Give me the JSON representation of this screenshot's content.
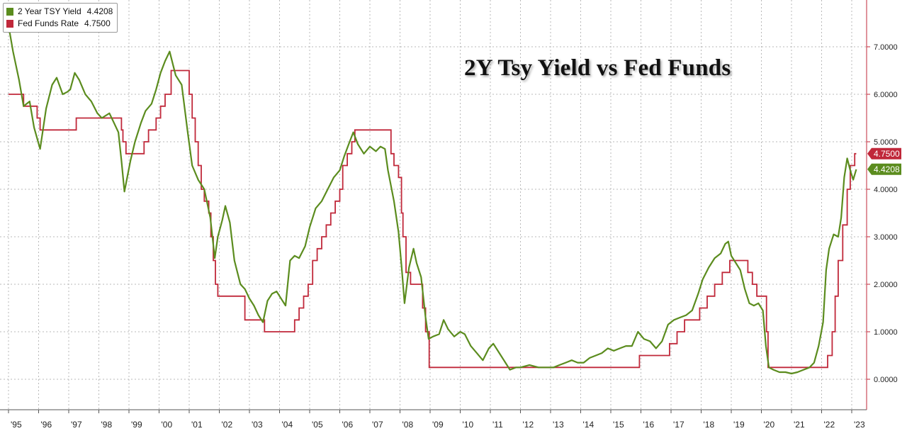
{
  "chart_data": {
    "type": "line",
    "title": "2Y Tsy Yield vs Fed Funds",
    "x_tick_labels": [
      "'95",
      "'96",
      "'97",
      "'98",
      "'99",
      "'00",
      "'01",
      "'02",
      "'03",
      "'04",
      "'05",
      "'06",
      "'07",
      "'08",
      "'09",
      "'10",
      "'11",
      "'12",
      "'13",
      "'14",
      "'15",
      "'16",
      "'17",
      "'18",
      "'19",
      "'20",
      "'21",
      "'22",
      "'23"
    ],
    "y_tick_labels": [
      "0.0000",
      "1.0000",
      "2.0000",
      "3.0000",
      "4.0000",
      "5.0000",
      "6.0000",
      "7.0000"
    ],
    "xlim": [
      1995.0,
      2023.2
    ],
    "ylim": [
      -0.6,
      8.0
    ],
    "grid": true,
    "legend_position": "top-left",
    "series": [
      {
        "name": "2 Year TSY Yield",
        "last_value": "4.4208",
        "color": "#5b8c1e",
        "points": [
          [
            1995.0,
            7.45
          ],
          [
            1995.15,
            6.9
          ],
          [
            1995.35,
            6.3
          ],
          [
            1995.5,
            5.75
          ],
          [
            1995.7,
            5.85
          ],
          [
            1995.85,
            5.3
          ],
          [
            1996.05,
            4.85
          ],
          [
            1996.25,
            5.7
          ],
          [
            1996.45,
            6.2
          ],
          [
            1996.6,
            6.35
          ],
          [
            1996.8,
            6.0
          ],
          [
            1996.95,
            6.05
          ],
          [
            1997.05,
            6.1
          ],
          [
            1997.2,
            6.45
          ],
          [
            1997.35,
            6.3
          ],
          [
            1997.55,
            6.0
          ],
          [
            1997.75,
            5.85
          ],
          [
            1997.95,
            5.6
          ],
          [
            1998.1,
            5.5
          ],
          [
            1998.35,
            5.6
          ],
          [
            1998.5,
            5.4
          ],
          [
            1998.65,
            5.2
          ],
          [
            1998.75,
            4.6
          ],
          [
            1998.85,
            3.95
          ],
          [
            1999.05,
            4.6
          ],
          [
            1999.2,
            5.0
          ],
          [
            1999.4,
            5.4
          ],
          [
            1999.55,
            5.65
          ],
          [
            1999.75,
            5.8
          ],
          [
            1999.9,
            6.1
          ],
          [
            2000.05,
            6.45
          ],
          [
            2000.2,
            6.7
          ],
          [
            2000.35,
            6.9
          ],
          [
            2000.55,
            6.4
          ],
          [
            2000.75,
            6.2
          ],
          [
            2000.95,
            5.2
          ],
          [
            2001.1,
            4.5
          ],
          [
            2001.3,
            4.2
          ],
          [
            2001.5,
            4.0
          ],
          [
            2001.7,
            3.4
          ],
          [
            2001.85,
            2.55
          ],
          [
            2001.95,
            3.0
          ],
          [
            2002.1,
            3.35
          ],
          [
            2002.2,
            3.65
          ],
          [
            2002.35,
            3.3
          ],
          [
            2002.5,
            2.5
          ],
          [
            2002.7,
            2.0
          ],
          [
            2002.85,
            1.9
          ],
          [
            2003.0,
            1.7
          ],
          [
            2003.15,
            1.55
          ],
          [
            2003.3,
            1.35
          ],
          [
            2003.45,
            1.2
          ],
          [
            2003.6,
            1.65
          ],
          [
            2003.75,
            1.8
          ],
          [
            2003.9,
            1.85
          ],
          [
            2004.05,
            1.7
          ],
          [
            2004.2,
            1.55
          ],
          [
            2004.35,
            2.5
          ],
          [
            2004.5,
            2.6
          ],
          [
            2004.65,
            2.55
          ],
          [
            2004.85,
            2.8
          ],
          [
            2005.0,
            3.2
          ],
          [
            2005.2,
            3.6
          ],
          [
            2005.4,
            3.75
          ],
          [
            2005.6,
            4.0
          ],
          [
            2005.8,
            4.25
          ],
          [
            2006.0,
            4.4
          ],
          [
            2006.15,
            4.7
          ],
          [
            2006.3,
            4.95
          ],
          [
            2006.45,
            5.2
          ],
          [
            2006.6,
            4.95
          ],
          [
            2006.8,
            4.75
          ],
          [
            2007.0,
            4.9
          ],
          [
            2007.2,
            4.8
          ],
          [
            2007.35,
            4.9
          ],
          [
            2007.5,
            4.85
          ],
          [
            2007.6,
            4.4
          ],
          [
            2007.8,
            3.75
          ],
          [
            2007.95,
            3.1
          ],
          [
            2008.05,
            2.4
          ],
          [
            2008.15,
            1.6
          ],
          [
            2008.3,
            2.35
          ],
          [
            2008.45,
            2.75
          ],
          [
            2008.55,
            2.45
          ],
          [
            2008.7,
            2.15
          ],
          [
            2008.85,
            1.3
          ],
          [
            2008.95,
            0.85
          ],
          [
            2009.1,
            0.9
          ],
          [
            2009.3,
            0.95
          ],
          [
            2009.45,
            1.25
          ],
          [
            2009.6,
            1.05
          ],
          [
            2009.8,
            0.9
          ],
          [
            2010.0,
            1.0
          ],
          [
            2010.15,
            0.95
          ],
          [
            2010.35,
            0.7
          ],
          [
            2010.55,
            0.55
          ],
          [
            2010.75,
            0.4
          ],
          [
            2010.95,
            0.65
          ],
          [
            2011.1,
            0.75
          ],
          [
            2011.3,
            0.55
          ],
          [
            2011.5,
            0.35
          ],
          [
            2011.65,
            0.2
          ],
          [
            2011.85,
            0.25
          ],
          [
            2012.0,
            0.25
          ],
          [
            2012.3,
            0.3
          ],
          [
            2012.6,
            0.25
          ],
          [
            2012.9,
            0.25
          ],
          [
            2013.1,
            0.25
          ],
          [
            2013.3,
            0.3
          ],
          [
            2013.5,
            0.35
          ],
          [
            2013.7,
            0.4
          ],
          [
            2013.9,
            0.35
          ],
          [
            2014.1,
            0.35
          ],
          [
            2014.3,
            0.45
          ],
          [
            2014.5,
            0.5
          ],
          [
            2014.7,
            0.55
          ],
          [
            2014.9,
            0.65
          ],
          [
            2015.1,
            0.6
          ],
          [
            2015.3,
            0.65
          ],
          [
            2015.5,
            0.7
          ],
          [
            2015.7,
            0.7
          ],
          [
            2015.9,
            1.0
          ],
          [
            2016.1,
            0.85
          ],
          [
            2016.3,
            0.8
          ],
          [
            2016.5,
            0.65
          ],
          [
            2016.7,
            0.8
          ],
          [
            2016.9,
            1.15
          ],
          [
            2017.1,
            1.25
          ],
          [
            2017.3,
            1.3
          ],
          [
            2017.5,
            1.35
          ],
          [
            2017.7,
            1.45
          ],
          [
            2017.9,
            1.8
          ],
          [
            2018.05,
            2.1
          ],
          [
            2018.25,
            2.35
          ],
          [
            2018.45,
            2.55
          ],
          [
            2018.65,
            2.65
          ],
          [
            2018.8,
            2.85
          ],
          [
            2018.9,
            2.9
          ],
          [
            2019.0,
            2.6
          ],
          [
            2019.15,
            2.45
          ],
          [
            2019.3,
            2.3
          ],
          [
            2019.45,
            1.9
          ],
          [
            2019.6,
            1.6
          ],
          [
            2019.75,
            1.55
          ],
          [
            2019.9,
            1.6
          ],
          [
            2020.05,
            1.45
          ],
          [
            2020.15,
            0.7
          ],
          [
            2020.25,
            0.25
          ],
          [
            2020.4,
            0.2
          ],
          [
            2020.6,
            0.15
          ],
          [
            2020.8,
            0.15
          ],
          [
            2021.0,
            0.12
          ],
          [
            2021.2,
            0.15
          ],
          [
            2021.4,
            0.2
          ],
          [
            2021.6,
            0.25
          ],
          [
            2021.75,
            0.35
          ],
          [
            2021.9,
            0.7
          ],
          [
            2022.05,
            1.2
          ],
          [
            2022.15,
            2.3
          ],
          [
            2022.25,
            2.75
          ],
          [
            2022.4,
            3.05
          ],
          [
            2022.55,
            3.0
          ],
          [
            2022.65,
            3.4
          ],
          [
            2022.75,
            4.25
          ],
          [
            2022.85,
            4.65
          ],
          [
            2022.95,
            4.4
          ],
          [
            2023.05,
            4.2
          ],
          [
            2023.15,
            4.42
          ]
        ]
      },
      {
        "name": "Fed Funds Rate",
        "last_value": "4.7500",
        "color": "#c0283a",
        "steps": [
          [
            1995.0,
            6.0
          ],
          [
            1995.5,
            5.75
          ],
          [
            1995.95,
            5.5
          ],
          [
            1996.05,
            5.25
          ],
          [
            1997.25,
            5.5
          ],
          [
            1998.75,
            5.25
          ],
          [
            1998.8,
            5.0
          ],
          [
            1998.9,
            4.75
          ],
          [
            1999.5,
            5.0
          ],
          [
            1999.65,
            5.25
          ],
          [
            1999.9,
            5.5
          ],
          [
            2000.05,
            5.75
          ],
          [
            2000.2,
            6.0
          ],
          [
            2000.4,
            6.5
          ],
          [
            2001.0,
            6.0
          ],
          [
            2001.1,
            5.5
          ],
          [
            2001.2,
            5.0
          ],
          [
            2001.3,
            4.5
          ],
          [
            2001.4,
            4.0
          ],
          [
            2001.5,
            3.75
          ],
          [
            2001.65,
            3.5
          ],
          [
            2001.72,
            3.0
          ],
          [
            2001.8,
            2.5
          ],
          [
            2001.87,
            2.0
          ],
          [
            2001.95,
            1.75
          ],
          [
            2002.85,
            1.25
          ],
          [
            2003.5,
            1.0
          ],
          [
            2004.5,
            1.25
          ],
          [
            2004.65,
            1.5
          ],
          [
            2004.8,
            1.75
          ],
          [
            2004.95,
            2.0
          ],
          [
            2005.1,
            2.5
          ],
          [
            2005.25,
            2.75
          ],
          [
            2005.4,
            3.0
          ],
          [
            2005.55,
            3.25
          ],
          [
            2005.7,
            3.5
          ],
          [
            2005.85,
            3.75
          ],
          [
            2006.0,
            4.0
          ],
          [
            2006.1,
            4.5
          ],
          [
            2006.25,
            4.75
          ],
          [
            2006.4,
            5.0
          ],
          [
            2006.5,
            5.25
          ],
          [
            2007.7,
            4.75
          ],
          [
            2007.8,
            4.5
          ],
          [
            2007.95,
            4.25
          ],
          [
            2008.05,
            3.5
          ],
          [
            2008.1,
            3.0
          ],
          [
            2008.2,
            2.25
          ],
          [
            2008.35,
            2.0
          ],
          [
            2008.75,
            1.5
          ],
          [
            2008.85,
            1.0
          ],
          [
            2008.97,
            0.25
          ],
          [
            2015.95,
            0.5
          ],
          [
            2016.95,
            0.75
          ],
          [
            2017.2,
            1.0
          ],
          [
            2017.45,
            1.25
          ],
          [
            2017.95,
            1.5
          ],
          [
            2018.2,
            1.75
          ],
          [
            2018.45,
            2.0
          ],
          [
            2018.7,
            2.25
          ],
          [
            2018.95,
            2.5
          ],
          [
            2019.55,
            2.25
          ],
          [
            2019.7,
            2.0
          ],
          [
            2019.85,
            1.75
          ],
          [
            2020.17,
            1.0
          ],
          [
            2020.22,
            0.25
          ],
          [
            2022.2,
            0.5
          ],
          [
            2022.35,
            1.0
          ],
          [
            2022.45,
            1.75
          ],
          [
            2022.55,
            2.5
          ],
          [
            2022.7,
            3.25
          ],
          [
            2022.85,
            4.0
          ],
          [
            2022.95,
            4.5
          ],
          [
            2023.1,
            4.75
          ],
          [
            2023.15,
            4.75
          ]
        ]
      }
    ]
  }
}
